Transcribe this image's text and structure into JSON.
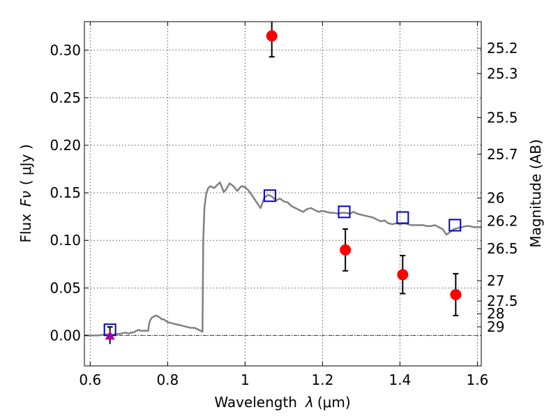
{
  "chart_data": {
    "type": "scatter",
    "xlabel": "Wavelength",
    "xlabel_symbol": "λ",
    "xlabel_unit": "(μm)",
    "ylabel": "Flux",
    "ylabel_symbol": "Fν",
    "ylabel_unit": "( μJy )",
    "y2label": "Magnitude (AB)",
    "xlim": [
      0.585,
      1.61
    ],
    "ylim": [
      -0.032,
      0.33
    ],
    "x_ticks": [
      0.6,
      0.8,
      1.0,
      1.2,
      1.4,
      1.6
    ],
    "x_tick_labels": [
      "0.6",
      "0.8",
      "1",
      "1.2",
      "1.4",
      "1.6"
    ],
    "y_ticks": [
      0.0,
      0.05,
      0.1,
      0.15,
      0.2,
      0.25,
      0.3
    ],
    "y_tick_labels": [
      "0.00",
      "0.05",
      "0.10",
      "0.15",
      "0.20",
      "0.25",
      "0.30"
    ],
    "mag_ticks": [
      25.2,
      25.3,
      25.5,
      25.7,
      26,
      26.2,
      26.5,
      27,
      27.5,
      28,
      29
    ],
    "mag_tick_labels": [
      "25.2",
      "25.3",
      "25.5",
      "25.7",
      "26",
      "26.2",
      "26.5",
      "27",
      "27.5",
      "28",
      "29"
    ],
    "grid": true,
    "zero_line": true,
    "colors": {
      "model": "#808080",
      "observed": "#ff0000",
      "model_phot": "#0000cc",
      "upper_limit": "#aa00aa",
      "errorbar": "#000000"
    },
    "series": [
      {
        "name": "model_sed",
        "kind": "line",
        "x": [
          0.585,
          0.6,
          0.62,
          0.64,
          0.66,
          0.68,
          0.69,
          0.7,
          0.705,
          0.71,
          0.715,
          0.72,
          0.725,
          0.73,
          0.74,
          0.75,
          0.752,
          0.755,
          0.76,
          0.77,
          0.78,
          0.785,
          0.79,
          0.8,
          0.81,
          0.82,
          0.83,
          0.84,
          0.85,
          0.86,
          0.87,
          0.88,
          0.89,
          0.892,
          0.895,
          0.9,
          0.905,
          0.91,
          0.92,
          0.93,
          0.935,
          0.94,
          0.945,
          0.95,
          0.96,
          0.97,
          0.98,
          0.99,
          1.0,
          1.01,
          1.02,
          1.03,
          1.04,
          1.05,
          1.06,
          1.07,
          1.08,
          1.09,
          1.1,
          1.11,
          1.12,
          1.13,
          1.14,
          1.15,
          1.16,
          1.17,
          1.18,
          1.19,
          1.2,
          1.21,
          1.22,
          1.23,
          1.24,
          1.25,
          1.26,
          1.27,
          1.28,
          1.29,
          1.3,
          1.31,
          1.32,
          1.33,
          1.34,
          1.35,
          1.36,
          1.37,
          1.38,
          1.39,
          1.4,
          1.41,
          1.42,
          1.43,
          1.44,
          1.45,
          1.46,
          1.47,
          1.48,
          1.49,
          1.5,
          1.51,
          1.52,
          1.53,
          1.54,
          1.55,
          1.56,
          1.57,
          1.58,
          1.59,
          1.6,
          1.61
        ],
        "y": [
          0.0,
          0.0,
          0.0,
          0.001,
          0.001,
          0.002,
          0.003,
          0.002,
          0.003,
          0.003,
          0.004,
          0.005,
          0.006,
          0.005,
          0.005,
          0.005,
          0.012,
          0.016,
          0.019,
          0.021,
          0.019,
          0.017,
          0.017,
          0.014,
          0.013,
          0.012,
          0.011,
          0.01,
          0.009,
          0.008,
          0.008,
          0.006,
          0.004,
          0.1,
          0.135,
          0.15,
          0.155,
          0.157,
          0.155,
          0.159,
          0.161,
          0.156,
          0.151,
          0.153,
          0.16,
          0.157,
          0.152,
          0.157,
          0.156,
          0.152,
          0.146,
          0.14,
          0.134,
          0.145,
          0.148,
          0.146,
          0.142,
          0.144,
          0.141,
          0.14,
          0.136,
          0.134,
          0.132,
          0.13,
          0.133,
          0.134,
          0.132,
          0.13,
          0.131,
          0.13,
          0.129,
          0.129,
          0.128,
          0.129,
          0.129,
          0.128,
          0.13,
          0.128,
          0.127,
          0.126,
          0.125,
          0.124,
          0.122,
          0.12,
          0.121,
          0.118,
          0.117,
          0.118,
          0.117,
          0.118,
          0.117,
          0.116,
          0.116,
          0.116,
          0.116,
          0.115,
          0.115,
          0.116,
          0.114,
          0.112,
          0.106,
          0.109,
          0.112,
          0.113,
          0.114,
          0.115,
          0.115,
          0.114,
          0.114,
          0.114
        ]
      },
      {
        "name": "observed_flux",
        "kind": "points",
        "x": [
          1.069,
          1.259,
          1.407,
          1.544
        ],
        "y": [
          0.315,
          0.09,
          0.064,
          0.043
        ],
        "yerr": [
          0.022,
          0.022,
          0.02,
          0.022
        ]
      },
      {
        "name": "model_photometry",
        "kind": "squares",
        "x": [
          0.651,
          1.064,
          1.256,
          1.407,
          1.542
        ],
        "y": [
          0.006,
          0.147,
          0.13,
          0.124,
          0.116
        ]
      },
      {
        "name": "upper_limit",
        "kind": "triangle",
        "x": [
          0.651
        ],
        "y": [
          0.0
        ],
        "yerr": [
          0.009
        ]
      }
    ]
  }
}
